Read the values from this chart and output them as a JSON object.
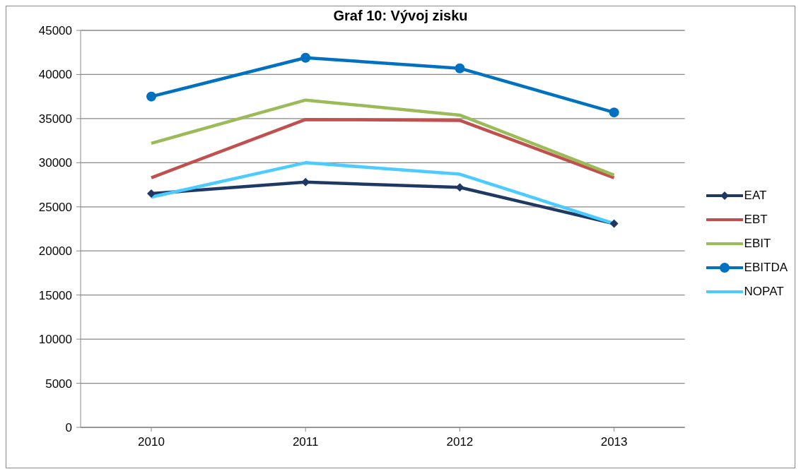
{
  "chart_data": {
    "type": "line",
    "title": "Graf 10: Vývoj zisku",
    "categories": [
      "2010",
      "2011",
      "2012",
      "2013"
    ],
    "series": [
      {
        "name": "EAT",
        "color": "#1f3864",
        "values": [
          26500,
          27800,
          27200,
          23100
        ],
        "marker": "diamond"
      },
      {
        "name": "EBT",
        "color": "#c0504d",
        "values": [
          28300,
          34900,
          34800,
          28300
        ],
        "marker": "none"
      },
      {
        "name": "EBIT",
        "color": "#9bbb59",
        "values": [
          32200,
          37100,
          35400,
          28600
        ],
        "marker": "none"
      },
      {
        "name": "EBITDA",
        "color": "#0070c0",
        "values": [
          37500,
          41900,
          40700,
          35700
        ],
        "marker": "circle"
      },
      {
        "name": "NOPAT",
        "color": "#4bcbff",
        "values": [
          26100,
          30000,
          28700,
          23100
        ],
        "marker": "none"
      }
    ],
    "ylim": [
      0,
      45000
    ],
    "yticks": [
      0,
      5000,
      10000,
      15000,
      20000,
      25000,
      30000,
      35000,
      40000,
      45000
    ],
    "grid": "y",
    "legend": "right"
  }
}
